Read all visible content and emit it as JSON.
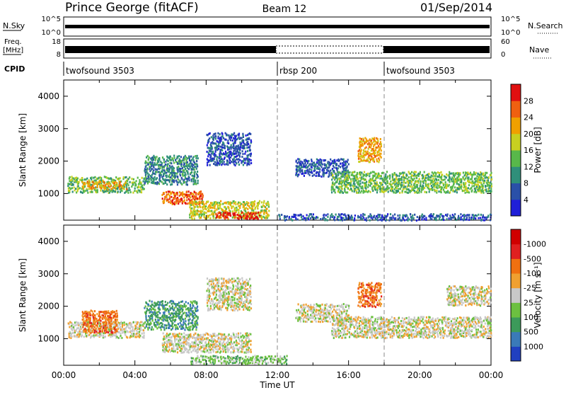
{
  "header": {
    "station": "Prince George (fitACF)",
    "beam": "Beam 12",
    "date": "01/Sep/2014"
  },
  "strip_nsky": {
    "left_label": "N.Sky",
    "left_ticks": [
      "10^5",
      "10^0"
    ],
    "right_label": "N.Search",
    "right_ticks": [
      "10^5",
      "10^0"
    ]
  },
  "strip_freq": {
    "left_label_1": "Freq.",
    "left_label_2": "[MHz]",
    "left_ticks": [
      "18",
      "8"
    ],
    "right_label": "Nave",
    "right_ticks": [
      "60",
      "0"
    ]
  },
  "cpid": {
    "label": "CPID",
    "segments": [
      {
        "name": "twofsound 3503",
        "start": 0,
        "end": 12
      },
      {
        "name": "rbsp 200",
        "start": 12,
        "end": 18
      },
      {
        "name": "twofsound 3503",
        "start": 18,
        "end": 24
      }
    ]
  },
  "axes": {
    "ylabel": "Slant Range [km]",
    "xlabel": "Time UT",
    "yticks": [
      "1000",
      "2000",
      "3000",
      "4000"
    ],
    "xticks": [
      "00:00",
      "04:00",
      "08:00",
      "12:00",
      "16:00",
      "20:00",
      "00:00"
    ],
    "xlim_hours": [
      0,
      24
    ],
    "ylim_km": [
      180,
      4500
    ],
    "mode_change_hours": [
      12,
      18
    ]
  },
  "chart_data": [
    {
      "type": "heatmap",
      "panel": "power",
      "xlabel": "Time UT",
      "ylabel": "Slant Range [km]",
      "colorbar": {
        "label": "Power [dB]",
        "ticks": [
          "4",
          "8",
          "12",
          "16",
          "20",
          "24",
          "28"
        ],
        "colors": [
          "#1f1fd8",
          "#2a50a8",
          "#2f8f7a",
          "#58b84a",
          "#c8d020",
          "#f0a000",
          "#f06010",
          "#e01010"
        ]
      },
      "bands": [
        {
          "t0": 0.2,
          "t1": 4.5,
          "r0": 1050,
          "r1": 1550,
          "level": 3
        },
        {
          "t0": 1.0,
          "t1": 3.5,
          "r0": 1150,
          "r1": 1400,
          "level": 5
        },
        {
          "t0": 4.5,
          "t1": 7.5,
          "r0": 1300,
          "r1": 2200,
          "level": 2
        },
        {
          "t0": 5.5,
          "t1": 7.8,
          "r0": 700,
          "r1": 1100,
          "level": 6
        },
        {
          "t0": 8.0,
          "t1": 10.5,
          "r0": 1900,
          "r1": 2900,
          "level": 1
        },
        {
          "t0": 7.0,
          "t1": 11.5,
          "r0": 250,
          "r1": 800,
          "level": 4
        },
        {
          "t0": 8.5,
          "t1": 11.0,
          "r0": 250,
          "r1": 450,
          "level": 7
        },
        {
          "t0": 13.0,
          "t1": 16.0,
          "r0": 1550,
          "r1": 2100,
          "level": 1
        },
        {
          "t0": 15.0,
          "t1": 24.0,
          "r0": 1050,
          "r1": 1700,
          "level": 3
        },
        {
          "t0": 16.5,
          "t1": 17.8,
          "r0": 2000,
          "r1": 2750,
          "level": 5
        },
        {
          "t0": 12.0,
          "t1": 24.0,
          "r0": 200,
          "r1": 400,
          "level": 1
        }
      ]
    },
    {
      "type": "heatmap",
      "panel": "velocity",
      "xlabel": "Time UT",
      "ylabel": "Slant Range [km]",
      "colorbar": {
        "label": "Velocity [m s⁻¹]",
        "ticks": [
          "1000",
          "500",
          "100",
          "25",
          "-25",
          "-100",
          "-500",
          "-1000"
        ],
        "colors": [
          "#2040c0",
          "#3a7ab8",
          "#3c9a5a",
          "#6cc040",
          "#c8c8c8",
          "#f0a030",
          "#f07010",
          "#e02020",
          "#d00000"
        ]
      },
      "bands": [
        {
          "t0": 0.2,
          "t1": 4.5,
          "r0": 1050,
          "r1": 1550,
          "level": 4
        },
        {
          "t0": 1.0,
          "t1": 3.0,
          "r0": 1200,
          "r1": 1900,
          "level": 6
        },
        {
          "t0": 4.5,
          "t1": 7.5,
          "r0": 1300,
          "r1": 2200,
          "level": 2
        },
        {
          "t0": 5.5,
          "t1": 10.5,
          "r0": 600,
          "r1": 1200,
          "level": 4
        },
        {
          "t0": 8.0,
          "t1": 10.5,
          "r0": 1900,
          "r1": 2900,
          "level": 4
        },
        {
          "t0": 7.0,
          "t1": 12.5,
          "r0": 250,
          "r1": 500,
          "level": 3
        },
        {
          "t0": 13.0,
          "t1": 16.0,
          "r0": 1550,
          "r1": 2100,
          "level": 4
        },
        {
          "t0": 15.0,
          "t1": 24.0,
          "r0": 1050,
          "r1": 1700,
          "level": 4
        },
        {
          "t0": 16.5,
          "t1": 17.8,
          "r0": 2000,
          "r1": 2750,
          "level": 6
        },
        {
          "t0": 21.5,
          "t1": 24.0,
          "r0": 2050,
          "r1": 2650,
          "level": 4
        }
      ]
    }
  ]
}
